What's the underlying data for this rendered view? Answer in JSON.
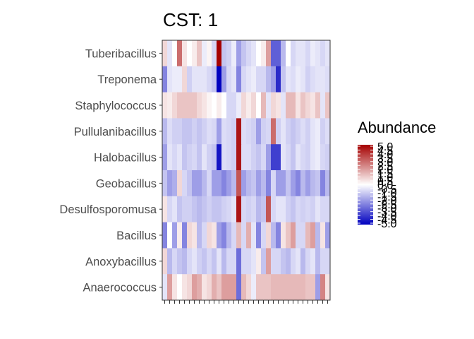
{
  "chart_data": {
    "type": "heatmap",
    "title": "CST: 1",
    "xlabel": "",
    "ylabel": "",
    "rows": [
      "Tuberibacillus",
      "Treponema",
      "Staphylococcus",
      "Pullulanibacillus",
      "Halobacillus",
      "Geobacillus",
      "Desulfosporomusa",
      "Bacillus",
      "Anoxybacillus",
      "Anaerococcus"
    ],
    "n_columns": 34,
    "values": [
      [
        0.5,
        -0.3,
        0,
        2.5,
        0.3,
        0,
        0.2,
        0.8,
        -0.2,
        0.1,
        -0.5,
        5,
        -0.8,
        -0.6,
        -0.2,
        -1.5,
        -0.8,
        -0.5,
        -0.3,
        0,
        0.2,
        1.5,
        -2.8,
        -2.8,
        -1,
        0,
        -0.5,
        -0.3,
        -0.3,
        -0.5,
        -0.2,
        -0.3,
        -0.5,
        -0.3
      ],
      [
        -2,
        -0.3,
        -0.2,
        -0.2,
        0.5,
        -0.6,
        -0.3,
        -0.3,
        -0.3,
        -0.5,
        -0.8,
        -5,
        -1.5,
        -0.5,
        -0.3,
        -2,
        -0.5,
        -0.3,
        -0.2,
        -0.5,
        -0.5,
        -1,
        -1.5,
        -4,
        -0.8,
        -0.3,
        -0.4,
        -0.2,
        -0.3,
        -0.6,
        -0.4,
        -0.3,
        -0.3,
        -0.4
      ],
      [
        0.3,
        0.2,
        0.5,
        0.8,
        0.8,
        0.8,
        0.8,
        0.5,
        0.3,
        0.1,
        0,
        0.2,
        0,
        -0.5,
        -0.5,
        -0.2,
        0.5,
        0.2,
        0.5,
        0,
        1,
        -0.3,
        0.5,
        0.3,
        -0.3,
        1,
        1,
        0.3,
        0.8,
        0.5,
        0.3,
        0.8,
        -0.3,
        0.8
      ],
      [
        -1,
        -0.4,
        -0.6,
        -0.6,
        -0.8,
        -0.8,
        -0.6,
        -0.8,
        -0.6,
        -0.4,
        -0.5,
        -1.5,
        -0.4,
        -0.5,
        -0.6,
        4.5,
        -0.4,
        -0.5,
        -0.6,
        -1.5,
        -0.6,
        -0.5,
        2.5,
        -0.6,
        -0.3,
        -0.6,
        -0.8,
        -0.6,
        -0.4,
        -0.6,
        -0.3,
        -0.2,
        -0.6,
        -0.4
      ],
      [
        -1.5,
        -0.3,
        -0.5,
        -0.3,
        -0.8,
        -0.6,
        -0.5,
        -0.8,
        -0.3,
        -0.6,
        -0.8,
        -4.5,
        -0.4,
        -0.5,
        -0.6,
        4.5,
        -0.4,
        -0.4,
        -0.6,
        -0.8,
        -0.5,
        -1.5,
        -3.5,
        -3.5,
        -0.3,
        -0.5,
        -0.8,
        -0.3,
        -0.5,
        -0.6,
        -0.3,
        -0.2,
        -0.5,
        -0.6
      ],
      [
        -0.8,
        -1.5,
        -1.2,
        0.5,
        -0.5,
        -0.8,
        -1.5,
        -1.5,
        -1,
        -0.5,
        -1.5,
        -1.5,
        -2,
        -1.5,
        -1,
        3,
        -1.5,
        -1,
        -0.8,
        -1.5,
        -1,
        -2,
        -0.5,
        -1.5,
        -1.5,
        -0.8,
        -1.5,
        -2,
        -1,
        -1.5,
        -1,
        -0.8,
        -2,
        -1
      ],
      [
        0.3,
        -0.5,
        -0.3,
        -0.8,
        -0.6,
        -0.6,
        -0.8,
        -1,
        -0.8,
        -0.6,
        -0.8,
        -0.8,
        -0.6,
        -0.5,
        -0.3,
        4.5,
        -0.5,
        -0.6,
        -0.5,
        -1,
        -0.8,
        3,
        -0.5,
        -0.3,
        -0.3,
        -0.6,
        -0.8,
        -0.5,
        -0.6,
        -0.5,
        -0.6,
        -0.3,
        -0.5,
        -0.5
      ],
      [
        -2,
        0,
        -1.5,
        0.2,
        -2,
        0.5,
        0.3,
        -1,
        -0.5,
        0.5,
        0.3,
        -1.5,
        -2,
        -1,
        -0.5,
        1,
        -0.5,
        1.2,
        -0.3,
        -2,
        -0.5,
        0.5,
        -1,
        -2,
        0.3,
        0.8,
        1.5,
        -0.5,
        -0.5,
        1,
        1.5,
        -1,
        0.3,
        -1.5
      ],
      [
        0.5,
        -1,
        -0.5,
        -0.8,
        -1,
        -0.5,
        -0.3,
        -0.6,
        -0.8,
        -0.5,
        -0.8,
        -0.3,
        -1,
        -0.5,
        -0.5,
        -2.5,
        -0.5,
        -0.5,
        -0.3,
        0.2,
        -0.8,
        1.5,
        -0.5,
        -0.5,
        -0.8,
        -1,
        -0.5,
        -0.3,
        -1,
        -0.5,
        -0.3,
        -1,
        -0.5,
        -0.5
      ],
      [
        -0.3,
        1.5,
        0.3,
        0,
        0.3,
        0.5,
        1.5,
        1.2,
        0.3,
        0.5,
        1.2,
        0.8,
        1.5,
        1.5,
        1.5,
        -2.5,
        1,
        0.5,
        -0.2,
        0.8,
        0.8,
        0.8,
        1,
        1,
        1,
        1,
        1,
        1,
        1,
        0.8,
        0.8,
        -1.5,
        2,
        0.3
      ]
    ],
    "scale": {
      "min": -5,
      "max": 5,
      "low": "#0000bf",
      "mid": "#ffffff",
      "high": "#a50000"
    },
    "legend": {
      "title": "Abundance",
      "position": "right",
      "labels": [
        "5.0",
        "4.5",
        "4.0",
        "3.5",
        "3.0",
        "2.5",
        "2.0",
        "1.5",
        "1.0",
        "0.5",
        "0.0",
        "-0.5",
        "-1.0",
        "-1.5",
        "-2.0",
        "-2.5",
        "-3.0",
        "-3.5",
        "-4.0",
        "-4.5",
        "-5.0"
      ]
    },
    "grid": false
  }
}
